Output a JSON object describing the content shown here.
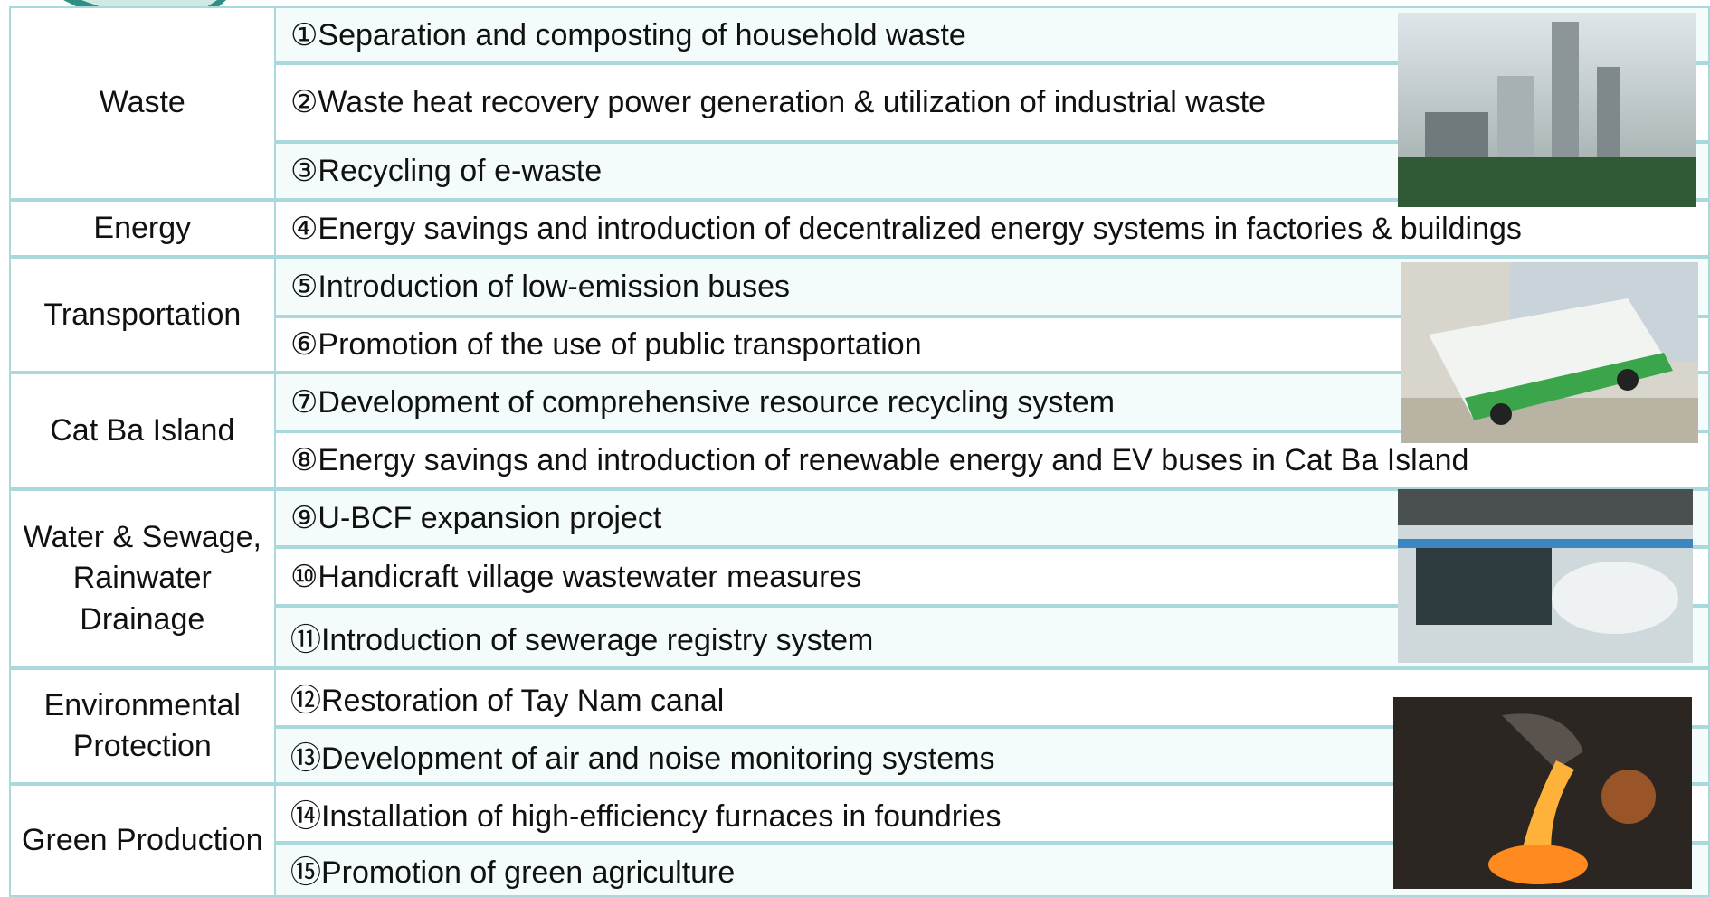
{
  "table": {
    "rows": [
      {
        "category": "Waste",
        "items": [
          "①Separation and composting of household waste",
          "②Waste heat recovery power generation & utilization of industrial waste",
          "③Recycling of e-waste"
        ]
      },
      {
        "category": "Energy",
        "items": [
          "④Energy savings and introduction of decentralized energy systems in factories & buildings"
        ]
      },
      {
        "category": "Transportation",
        "items": [
          "⑤Introduction of low-emission buses",
          "⑥Promotion of the use of public transportation"
        ]
      },
      {
        "category": "Cat Ba Island",
        "items": [
          "⑦Development of comprehensive resource recycling system",
          "⑧Energy savings and introduction of renewable energy and EV buses in Cat Ba Island"
        ]
      },
      {
        "category": "Water & Sewage, Rainwater Drainage",
        "items": [
          "⑨U-BCF expansion project",
          "⑩Handicraft village wastewater measures",
          "⑪Introduction of sewerage registry system"
        ]
      },
      {
        "category": "Environmental Protection",
        "items": [
          "⑫Restoration of Tay Nam canal",
          "⑬Development of air and noise monitoring systems"
        ]
      },
      {
        "category": "Green Production",
        "items": [
          "⑭Installation of high-efficiency furnaces in foundries",
          "⑮Promotion of green agriculture"
        ]
      }
    ]
  }
}
